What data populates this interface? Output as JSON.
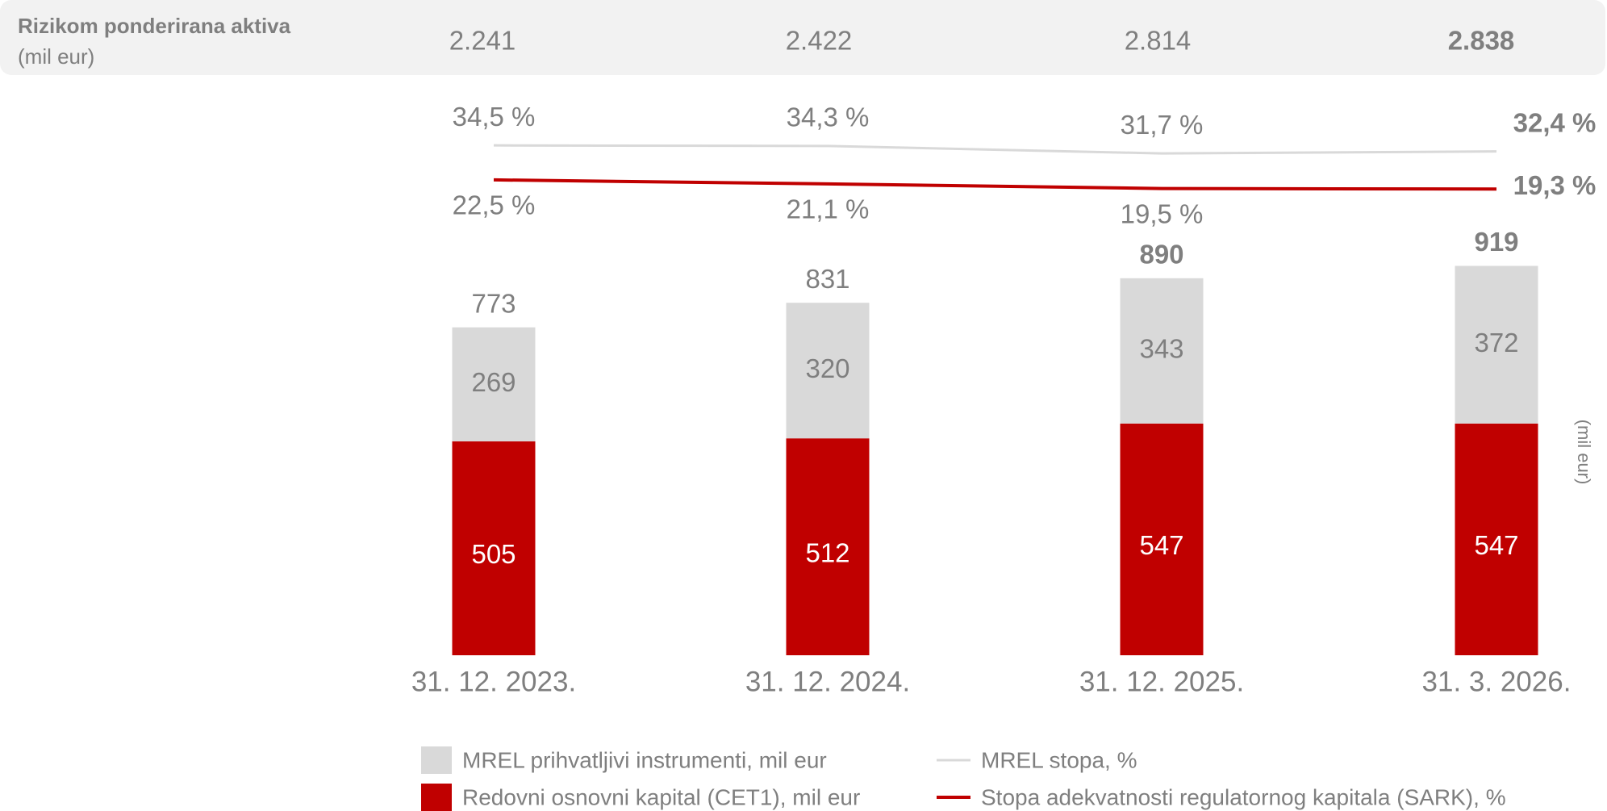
{
  "chart_data": {
    "type": "bar",
    "header_row": {
      "label": "Rizikom ponderirana aktiva",
      "unit": "(mil eur)",
      "values": [
        2241,
        2422,
        2814,
        2838
      ],
      "value_labels": [
        "2.241",
        "2.422",
        "2.814",
        "2.838"
      ]
    },
    "categories": [
      "31. 12. 2023.",
      "31. 12. 2024.",
      "31. 12. 2025.",
      "31. 3. 2026."
    ],
    "series": [
      {
        "name": "MREL prihvatljivi instrumenti, mil eur",
        "color": "#d9d9d9",
        "values": [
          269,
          320,
          343,
          372
        ]
      },
      {
        "name": "Redovni osnovni kapital (CET1), mil eur",
        "color": "#c00000",
        "values": [
          505,
          512,
          547,
          547
        ]
      }
    ],
    "totals": [
      773,
      831,
      890,
      919
    ],
    "lines": [
      {
        "name": "MREL stopa, %",
        "color": "#d9d9d9",
        "values": [
          34.5,
          34.3,
          31.7,
          32.4
        ],
        "value_labels": [
          "34,5 %",
          "34,3 %",
          "31,7 %",
          "32,4 %"
        ]
      },
      {
        "name": "Stopa adekvatnosti regulatornog kapitala (SARK), %",
        "color": "#c00000",
        "values": [
          22.5,
          21.1,
          19.5,
          19.3
        ],
        "value_labels": [
          "22,5 %",
          "21,1 %",
          "19,5 %",
          "19,3 %"
        ]
      }
    ],
    "y_axis_label": "(mil eur)"
  }
}
